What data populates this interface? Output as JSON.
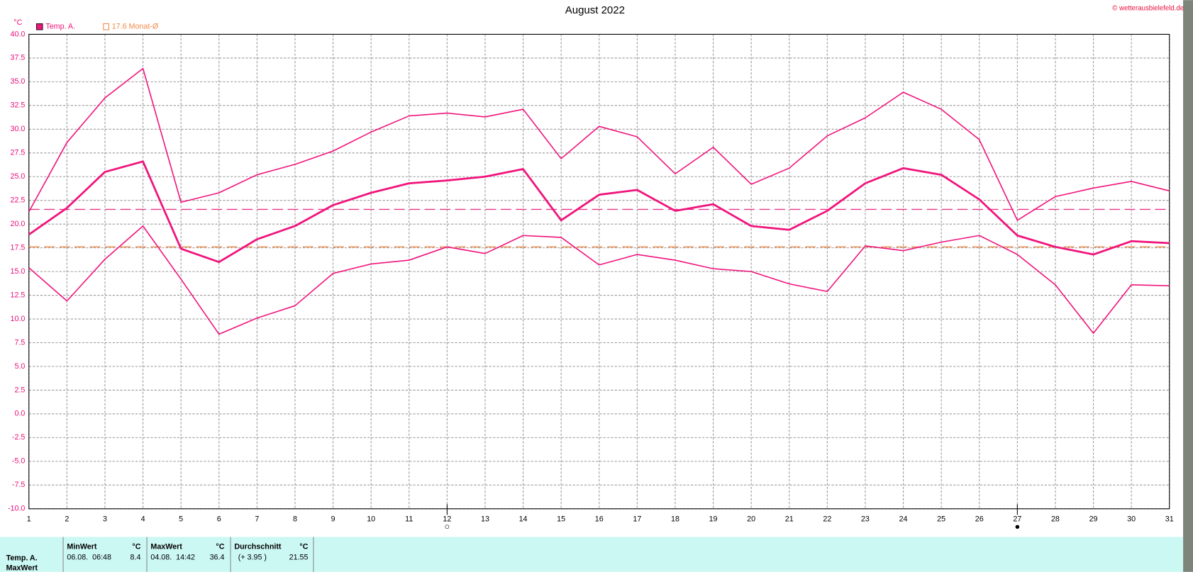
{
  "chart_data": {
    "type": "line",
    "title": "August 2022",
    "credit": "© wetterausbielefeld.de",
    "y_unit": "°C",
    "x": [
      1,
      2,
      3,
      4,
      5,
      6,
      7,
      8,
      9,
      10,
      11,
      12,
      13,
      14,
      15,
      16,
      17,
      18,
      19,
      20,
      21,
      22,
      23,
      24,
      25,
      26,
      27,
      28,
      29,
      30,
      31
    ],
    "xlim": [
      1,
      31
    ],
    "xticks": [
      1,
      2,
      3,
      4,
      5,
      6,
      7,
      8,
      9,
      10,
      11,
      12,
      13,
      14,
      15,
      16,
      17,
      18,
      19,
      20,
      21,
      22,
      23,
      24,
      25,
      26,
      27,
      28,
      29,
      30,
      31
    ],
    "ylim": [
      -10,
      40
    ],
    "yticks": [
      {
        "value": 40,
        "label": "40.0"
      },
      37.5,
      {
        "value": 35,
        "label": "35.0"
      },
      32.5,
      {
        "value": 30,
        "label": "30.0"
      },
      27.5,
      {
        "value": 25,
        "label": "25.0"
      },
      22.5,
      {
        "value": 20,
        "label": "20.0"
      },
      17.5,
      {
        "value": 15,
        "label": "15.0"
      },
      12.5,
      {
        "value": 10,
        "label": "10.0"
      },
      7.5,
      {
        "value": 5,
        "label": "5.0"
      },
      2.5,
      {
        "value": 0,
        "label": "0.0"
      },
      -2.5,
      {
        "value": -5,
        "label": "-5.0"
      },
      -7.5,
      {
        "value": -10,
        "label": "-10.0"
      }
    ],
    "grid": true,
    "series": [
      {
        "color": "#f0147c",
        "values": [
          21.3,
          28.6,
          33.3,
          36.4,
          22.3,
          23.3,
          25.2,
          26.3,
          27.7,
          29.7,
          31.4,
          31.7,
          31.3,
          32.1,
          26.9,
          30.3,
          29.2,
          25.3,
          28.1,
          24.2,
          25.9,
          29.3,
          31.2,
          33.9,
          32.1,
          28.9,
          20.4,
          22.9,
          23.8,
          24.5,
          23.5
        ]
      },
      {
        "name": "Temp. A.",
        "color": "#f0147c",
        "values": [
          18.9,
          21.7,
          25.5,
          26.6,
          17.4,
          16.0,
          18.4,
          19.8,
          22.0,
          23.3,
          24.3,
          24.6,
          25.0,
          25.8,
          20.4,
          23.1,
          23.6,
          21.4,
          22.1,
          19.8,
          19.4,
          21.4,
          24.3,
          25.9,
          25.2,
          22.6,
          18.8,
          17.6,
          16.8,
          18.2,
          18.0
        ]
      },
      {
        "color": "#f0147c",
        "values": [
          15.4,
          11.9,
          16.3,
          19.8,
          14.2,
          8.4,
          10.1,
          11.4,
          14.8,
          15.8,
          16.2,
          17.6,
          16.9,
          18.8,
          18.6,
          15.7,
          16.8,
          16.2,
          15.3,
          15.0,
          13.7,
          12.9,
          17.7,
          17.2,
          18.1,
          18.8,
          16.8,
          13.6,
          8.5,
          13.6,
          13.5
        ]
      }
    ],
    "reference_lines": [
      {
        "value": 21.55,
        "color": "#e8338b"
      },
      {
        "value": 17.6,
        "color": "#f08a4b",
        "label": "17.6 Monat-Ø"
      }
    ],
    "markers": [
      {
        "x": 12,
        "symbol": "○"
      },
      {
        "x": 27,
        "symbol": "●"
      }
    ]
  },
  "table": {
    "header": [
      "MinWert",
      "°C",
      "MaxWert",
      "°C",
      "Durchschnitt",
      "°C"
    ],
    "rows": [
      [
        "Temp. A.",
        "06.08.  06:48",
        "8.4",
        "04.08.  14:42",
        "36.4",
        "(+ 3.95 )",
        "21.55"
      ],
      [
        "MaxWert"
      ]
    ]
  }
}
